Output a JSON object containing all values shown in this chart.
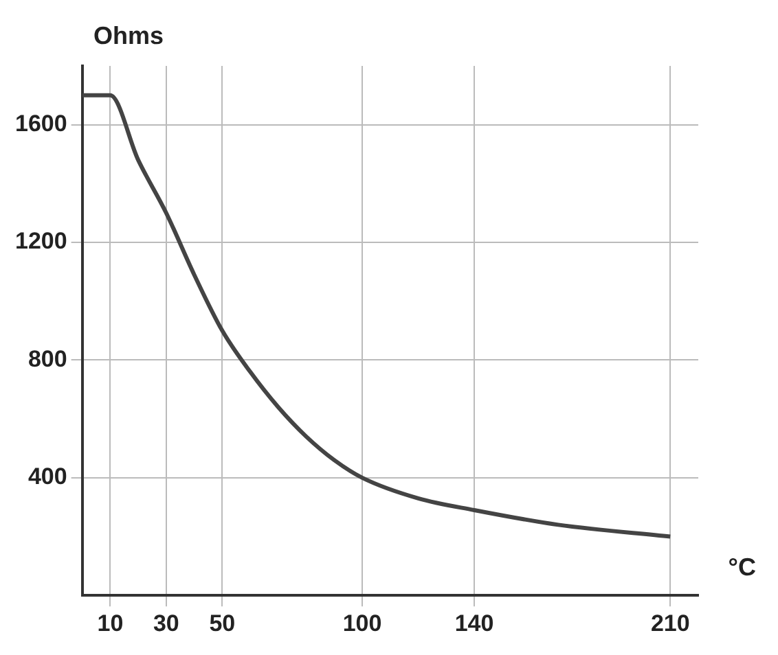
{
  "chart_data": {
    "type": "line",
    "xlabel": "°C",
    "ylabel": "Ohms",
    "x": [
      0,
      10,
      20,
      30,
      40,
      50,
      60,
      70,
      80,
      90,
      100,
      120,
      140,
      170,
      210
    ],
    "series": [
      {
        "color": "#444444",
        "values": [
          1700,
          1700,
          1480,
          1300,
          1090,
          900,
          760,
          640,
          540,
          460,
          400,
          330,
          290,
          240,
          200
        ]
      }
    ],
    "xlim": [
      0,
      220
    ],
    "xticks": [
      10,
      30,
      50,
      100,
      140,
      210
    ],
    "ylim": [
      0,
      1800
    ],
    "yticks": [
      400,
      800,
      1200,
      1600
    ],
    "grid": true,
    "legend": false,
    "marker": "none",
    "line_style": "solid"
  }
}
